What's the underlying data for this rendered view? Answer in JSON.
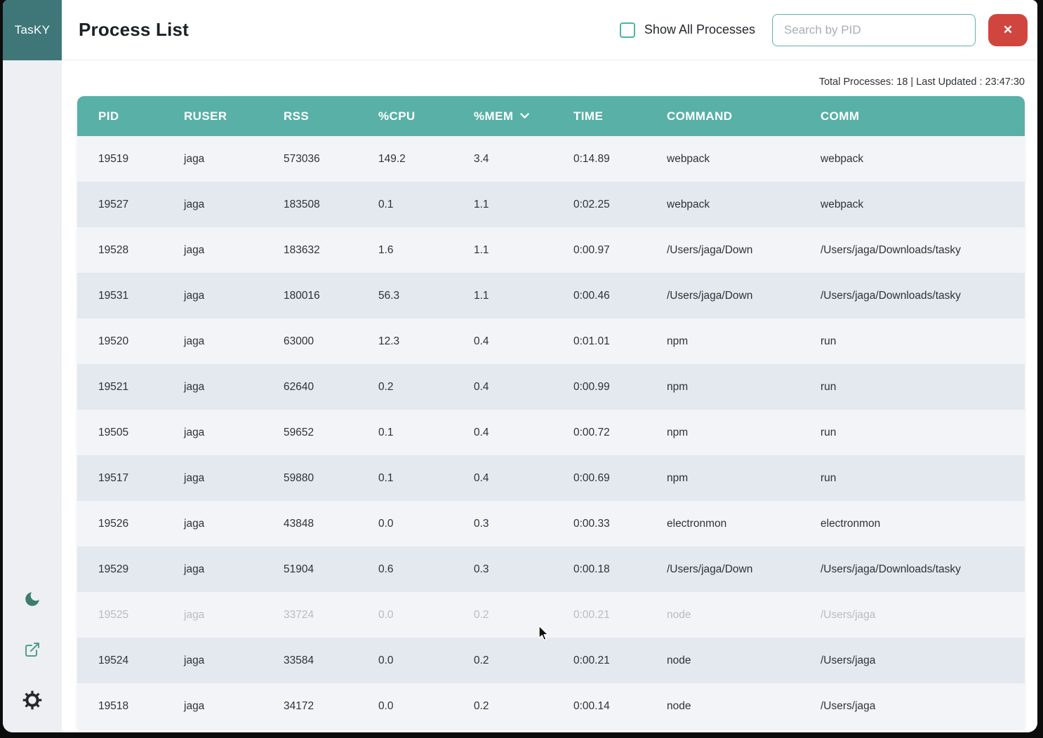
{
  "window": {
    "logo_text": "TasKY"
  },
  "header": {
    "title": "Process List",
    "show_all_label": "Show All Processes",
    "show_all_checked": false,
    "search_placeholder": "Search by PID",
    "close_button_label": "✕"
  },
  "status_bar": {
    "text": "Total Processes: 18 | Last Updated : 23:47:30",
    "total_processes": 18,
    "last_updated": "23:47:30"
  },
  "table": {
    "columns": [
      {
        "key": "pid",
        "label": "PID"
      },
      {
        "key": "ruser",
        "label": "RUSER"
      },
      {
        "key": "rss",
        "label": "RSS"
      },
      {
        "key": "cpu",
        "label": "%CPU"
      },
      {
        "key": "mem",
        "label": "%MEM",
        "sorted": "desc"
      },
      {
        "key": "time",
        "label": "TIME"
      },
      {
        "key": "command",
        "label": "COMMAND"
      },
      {
        "key": "comm",
        "label": "COMM"
      }
    ],
    "rows": [
      {
        "pid": "19519",
        "ruser": "jaga",
        "rss": "573036",
        "cpu": "149.2",
        "mem": "3.4",
        "time": "0:14.89",
        "command": "webpack",
        "comm": "webpack",
        "faded": false
      },
      {
        "pid": "19527",
        "ruser": "jaga",
        "rss": "183508",
        "cpu": "0.1",
        "mem": "1.1",
        "time": "0:02.25",
        "command": "webpack",
        "comm": "webpack",
        "faded": false
      },
      {
        "pid": "19528",
        "ruser": "jaga",
        "rss": "183632",
        "cpu": "1.6",
        "mem": "1.1",
        "time": "0:00.97",
        "command": "/Users/jaga/Down",
        "comm": "/Users/jaga/Downloads/tasky",
        "faded": false
      },
      {
        "pid": "19531",
        "ruser": "jaga",
        "rss": "180016",
        "cpu": "56.3",
        "mem": "1.1",
        "time": "0:00.46",
        "command": "/Users/jaga/Down",
        "comm": "/Users/jaga/Downloads/tasky",
        "faded": false
      },
      {
        "pid": "19520",
        "ruser": "jaga",
        "rss": "63000",
        "cpu": "12.3",
        "mem": "0.4",
        "time": "0:01.01",
        "command": "npm",
        "comm": "run",
        "faded": false
      },
      {
        "pid": "19521",
        "ruser": "jaga",
        "rss": "62640",
        "cpu": "0.2",
        "mem": "0.4",
        "time": "0:00.99",
        "command": "npm",
        "comm": "run",
        "faded": false
      },
      {
        "pid": "19505",
        "ruser": "jaga",
        "rss": "59652",
        "cpu": "0.1",
        "mem": "0.4",
        "time": "0:00.72",
        "command": "npm",
        "comm": "run",
        "faded": false
      },
      {
        "pid": "19517",
        "ruser": "jaga",
        "rss": "59880",
        "cpu": "0.1",
        "mem": "0.4",
        "time": "0:00.69",
        "command": "npm",
        "comm": "run",
        "faded": false
      },
      {
        "pid": "19526",
        "ruser": "jaga",
        "rss": "43848",
        "cpu": "0.0",
        "mem": "0.3",
        "time": "0:00.33",
        "command": "electronmon",
        "comm": "electronmon",
        "faded": false
      },
      {
        "pid": "19529",
        "ruser": "jaga",
        "rss": "51904",
        "cpu": "0.6",
        "mem": "0.3",
        "time": "0:00.18",
        "command": "/Users/jaga/Down",
        "comm": "/Users/jaga/Downloads/tasky",
        "faded": false
      },
      {
        "pid": "19525",
        "ruser": "jaga",
        "rss": "33724",
        "cpu": "0.0",
        "mem": "0.2",
        "time": "0:00.21",
        "command": "node",
        "comm": "/Users/jaga",
        "faded": true
      },
      {
        "pid": "19524",
        "ruser": "jaga",
        "rss": "33584",
        "cpu": "0.0",
        "mem": "0.2",
        "time": "0:00.21",
        "command": "node",
        "comm": "/Users/jaga",
        "faded": false
      },
      {
        "pid": "19518",
        "ruser": "jaga",
        "rss": "34172",
        "cpu": "0.0",
        "mem": "0.2",
        "time": "0:00.14",
        "command": "node",
        "comm": "/Users/jaga",
        "faded": false
      }
    ]
  },
  "sidebar": {
    "icons": [
      {
        "name": "dark-mode-moon-icon"
      },
      {
        "name": "open-external-icon"
      },
      {
        "name": "settings-gear-icon"
      }
    ]
  },
  "colors": {
    "table_header_teal": "#58b0a7",
    "logo_teal": "#3f7779",
    "accent_teal_border": "#5cb3a6",
    "danger_red": "#d0463e",
    "row_odd": "#f2f4f7",
    "row_even": "#e4e8ef",
    "faded_text": "#b7bdc6"
  }
}
